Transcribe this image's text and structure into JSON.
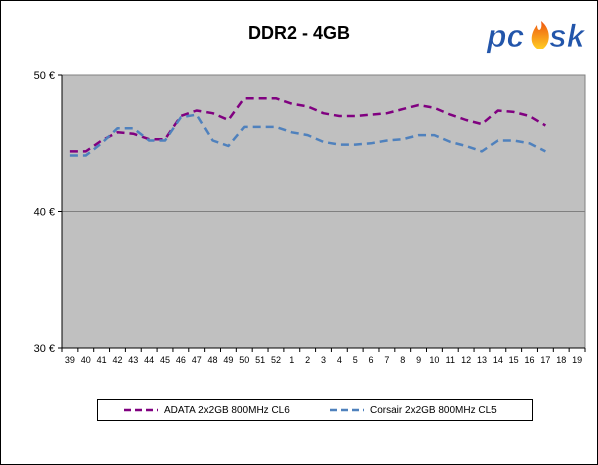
{
  "chart_data": {
    "type": "line",
    "title": "DDR2 - 4GB",
    "categories": [
      "39",
      "40",
      "41",
      "42",
      "43",
      "44",
      "45",
      "46",
      "47",
      "48",
      "49",
      "50",
      "51",
      "52",
      "1",
      "2",
      "3",
      "4",
      "5",
      "6",
      "7",
      "8",
      "9",
      "10",
      "11",
      "12",
      "13",
      "14",
      "15",
      "16",
      "17",
      "18",
      "19"
    ],
    "ylim": [
      30,
      50
    ],
    "yticks": [
      30,
      40,
      50
    ],
    "ytick_labels": [
      "30 €",
      "40 €",
      "50 €"
    ],
    "grid": "horizontal",
    "legend_position": "bottom",
    "plot_background": "#c0c0c0",
    "series": [
      {
        "name": "ADATA 2x2GB 800MHz CL6",
        "color": "#800080",
        "values": [
          44.4,
          44.4,
          45.2,
          45.8,
          45.7,
          45.3,
          45.3,
          47.0,
          47.4,
          47.2,
          46.7,
          48.3,
          48.3,
          48.3,
          47.9,
          47.7,
          47.2,
          47.0,
          47.0,
          47.1,
          47.2,
          47.5,
          47.8,
          47.6,
          47.1,
          46.7,
          46.4,
          47.4,
          47.3,
          47.0,
          46.3,
          null,
          null
        ]
      },
      {
        "name": "Corsair 2x2GB 800MHz CL5",
        "color": "#4f81bd",
        "values": [
          44.1,
          44.1,
          45.0,
          46.1,
          46.1,
          45.2,
          45.2,
          46.9,
          47.1,
          45.2,
          44.8,
          46.2,
          46.2,
          46.2,
          45.8,
          45.6,
          45.1,
          44.9,
          44.9,
          45.0,
          45.2,
          45.3,
          45.6,
          45.6,
          45.1,
          44.8,
          44.4,
          45.2,
          45.2,
          45.0,
          44.4,
          null,
          null
        ]
      }
    ]
  },
  "branding": {
    "logo_text": "pcosk",
    "logo_colors": {
      "text": "#2255aa",
      "flame": "#ee7711"
    }
  }
}
